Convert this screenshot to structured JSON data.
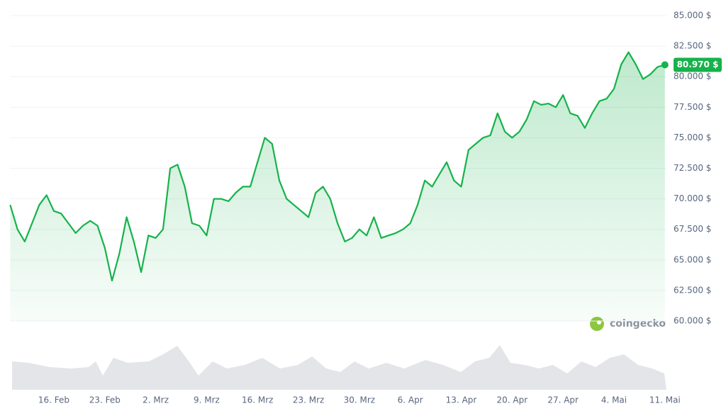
{
  "chart_data": {
    "type": "line",
    "categories": [
      null,
      null,
      null,
      null,
      null,
      null,
      "16. Feb",
      null,
      null,
      null,
      null,
      null,
      null,
      "23. Feb",
      null,
      null,
      null,
      null,
      null,
      null,
      "2. Mrz",
      null,
      null,
      null,
      null,
      null,
      null,
      "9. Mrz",
      null,
      null,
      null,
      null,
      null,
      null,
      "16. Mrz",
      null,
      null,
      null,
      null,
      null,
      null,
      "23. Mrz",
      null,
      null,
      null,
      null,
      null,
      null,
      "30. Mrz",
      null,
      null,
      null,
      null,
      null,
      null,
      "6. Apr",
      null,
      null,
      null,
      null,
      null,
      null,
      "13. Apr",
      null,
      null,
      null,
      null,
      null,
      null,
      "20. Apr",
      null,
      null,
      null,
      null,
      null,
      null,
      "27. Apr",
      null,
      null,
      null,
      null,
      null,
      null,
      "4. Mai",
      null,
      null,
      null,
      null,
      null,
      null,
      "11. Mai"
    ],
    "series": [
      {
        "color": "#16b24b",
        "values": [
          69500,
          67500,
          66500,
          68000,
          69500,
          70300,
          69000,
          68800,
          68000,
          67200,
          67800,
          68200,
          67800,
          66000,
          63300,
          65500,
          68500,
          66500,
          64000,
          67000,
          66800,
          67500,
          72500,
          72800,
          71000,
          68000,
          67800,
          67000,
          70000,
          70000,
          69800,
          70500,
          71000,
          71000,
          73000,
          75000,
          74500,
          71500,
          70000,
          69500,
          69000,
          68500,
          70500,
          71000,
          70000,
          68000,
          66500,
          66800,
          67500,
          67000,
          68500,
          66800,
          67000,
          67200,
          67500,
          68000,
          69500,
          71500,
          71000,
          72000,
          73000,
          71500,
          71000,
          74000,
          74500,
          75000,
          75200,
          77000,
          75500,
          75000,
          75500,
          76500,
          78000,
          77700,
          77800,
          77500,
          78500,
          77000,
          76800,
          75800,
          77000,
          78000,
          78200,
          79000,
          81000,
          82000,
          81000,
          79800,
          80200,
          80800,
          80970
        ],
        "value_labels": [
          null,
          null,
          null,
          null,
          null,
          null,
          null,
          null,
          null,
          null,
          null,
          null,
          null,
          null,
          null,
          null,
          null,
          null,
          null,
          null,
          null,
          null,
          null,
          null,
          null,
          null,
          null,
          null,
          null,
          null,
          null,
          null,
          null,
          null,
          null,
          null,
          null,
          null,
          null,
          null,
          null,
          null,
          null,
          null,
          null,
          null,
          null,
          null,
          null,
          null,
          null,
          null,
          null,
          null,
          null,
          null,
          null,
          null,
          null,
          null,
          null,
          null,
          null,
          null,
          null,
          null,
          null,
          null,
          null,
          null,
          null,
          null,
          null,
          null,
          null,
          null,
          null,
          null,
          null,
          null,
          null,
          null,
          null,
          null,
          null,
          null,
          null,
          null,
          null,
          null,
          "80.970 $"
        ]
      }
    ],
    "ylim": [
      60000,
      85000
    ],
    "yticks": [
      {
        "value": 60000,
        "label": "60.000 $"
      },
      {
        "value": 62500,
        "label": "62.500 $"
      },
      {
        "value": 65000,
        "label": "65.000 $"
      },
      {
        "value": 67500,
        "label": "67.500 $"
      },
      {
        "value": 70000,
        "label": "70.000 $"
      },
      {
        "value": 72500,
        "label": "72.500 $"
      },
      {
        "value": 75000,
        "label": "75.000 $"
      },
      {
        "value": 77500,
        "label": "77.500 $"
      },
      {
        "value": 80000,
        "label": "80.000 $"
      },
      {
        "value": 82500,
        "label": "82.500 $"
      },
      {
        "value": 85000,
        "label": "85.000 $"
      }
    ],
    "grid": true,
    "watermark": "coingecko"
  }
}
